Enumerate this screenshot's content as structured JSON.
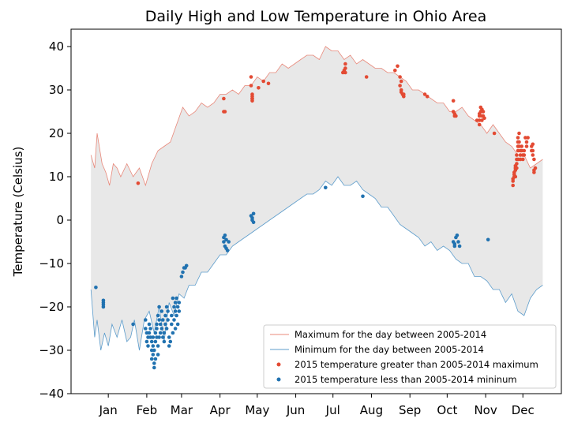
{
  "chart_data": {
    "type": "line",
    "title": "Daily High and Low Temperature in Ohio Area",
    "xlabel": "",
    "ylabel": "Temperature (Celsius)",
    "ylim": [
      -40,
      44
    ],
    "xlim": [
      -15,
      380
    ],
    "yticks": [
      -40,
      -30,
      -20,
      -10,
      0,
      10,
      20,
      30,
      40
    ],
    "months": [
      "Jan",
      "Feb",
      "Mar",
      "Apr",
      "May",
      "Jun",
      "Jul",
      "Aug",
      "Sep",
      "Oct",
      "Nov",
      "Dec"
    ],
    "month_days": [
      15,
      46,
      74,
      105,
      135,
      166,
      196,
      227,
      258,
      288,
      319,
      349
    ],
    "grid": false,
    "legend_position": "lower-right",
    "fill_color": "#e8e8e8",
    "series": [
      {
        "name": "Maximum for the day between 2005-2014",
        "kind": "line",
        "color": "#e8887a",
        "x": [
          1,
          4,
          6,
          10,
          13,
          16,
          19,
          22,
          25,
          30,
          35,
          40,
          45,
          50,
          55,
          60,
          65,
          70,
          75,
          80,
          85,
          90,
          95,
          100,
          105,
          110,
          115,
          120,
          125,
          130,
          135,
          140,
          145,
          150,
          155,
          160,
          165,
          170,
          175,
          180,
          185,
          190,
          195,
          200,
          205,
          210,
          215,
          220,
          225,
          230,
          235,
          240,
          245,
          250,
          255,
          260,
          265,
          270,
          275,
          280,
          285,
          290,
          295,
          300,
          305,
          310,
          315,
          320,
          325,
          330,
          335,
          340,
          345,
          350,
          355,
          360,
          365
        ],
        "y": [
          15,
          12,
          20,
          13,
          11,
          8,
          13,
          12,
          10,
          13,
          10,
          12,
          8,
          13,
          16,
          17,
          18,
          22,
          26,
          24,
          25,
          27,
          26,
          27,
          29,
          29,
          30,
          29,
          31,
          31,
          33,
          32,
          34,
          34,
          36,
          35,
          36,
          37,
          38,
          38,
          37,
          40,
          39,
          39,
          37,
          38,
          36,
          37,
          36,
          35,
          35,
          34,
          34,
          33,
          32,
          30,
          30,
          29,
          28,
          27,
          27,
          25,
          25,
          26,
          24,
          23,
          22,
          20,
          22,
          20,
          18,
          17,
          15,
          15,
          12,
          13,
          14
        ]
      },
      {
        "name": "Minimum for the day between 2005-2014",
        "kind": "line",
        "color": "#5c9ccb",
        "x": [
          1,
          4,
          6,
          9,
          12,
          15,
          18,
          22,
          26,
          30,
          33,
          36,
          40,
          44,
          48,
          52,
          56,
          60,
          64,
          68,
          72,
          76,
          80,
          85,
          90,
          95,
          100,
          105,
          110,
          115,
          120,
          125,
          130,
          135,
          140,
          145,
          150,
          155,
          160,
          165,
          170,
          175,
          180,
          185,
          190,
          195,
          200,
          205,
          210,
          215,
          220,
          225,
          230,
          235,
          240,
          245,
          250,
          255,
          260,
          265,
          270,
          275,
          280,
          285,
          290,
          295,
          300,
          305,
          310,
          315,
          320,
          325,
          330,
          335,
          340,
          345,
          350,
          355,
          360,
          365
        ],
        "y": [
          -16,
          -27,
          -23,
          -30,
          -26,
          -29,
          -24,
          -27,
          -23,
          -28,
          -27,
          -23,
          -30,
          -23,
          -21,
          -26,
          -20,
          -28,
          -19,
          -22,
          -17,
          -18,
          -15,
          -15,
          -12,
          -12,
          -10,
          -8,
          -8,
          -6,
          -5,
          -4,
          -3,
          -2,
          -1,
          0,
          1,
          2,
          3,
          4,
          5,
          6,
          6,
          7,
          9,
          8,
          10,
          8,
          8,
          9,
          7,
          6,
          5,
          3,
          3,
          1,
          -1,
          -2,
          -3,
          -4,
          -6,
          -5,
          -7,
          -6,
          -7,
          -9,
          -10,
          -10,
          -13,
          -13,
          -14,
          -16,
          -16,
          -19,
          -17,
          -21,
          -22,
          -18,
          -16,
          -15
        ]
      },
      {
        "name": "2015 temperature greater than 2005-2014 maximum",
        "kind": "scatter",
        "color": "#e34a33",
        "x": [
          39,
          108,
          108,
          109,
          130,
          130,
          131,
          131,
          131,
          131,
          131,
          136,
          140,
          144,
          204,
          205,
          206,
          206,
          206,
          223,
          246,
          248,
          250,
          250,
          251,
          251,
          251,
          252,
          253,
          253,
          270,
          272,
          293,
          293,
          294,
          294,
          295,
          312,
          314,
          314,
          314,
          314,
          315,
          315,
          316,
          316,
          316,
          317,
          317,
          318,
          326,
          341,
          341,
          341,
          342,
          342,
          342,
          343,
          343,
          343,
          343,
          344,
          344,
          344,
          344,
          345,
          345,
          345,
          345,
          345,
          346,
          346,
          346,
          347,
          347,
          347,
          348,
          348,
          349,
          349,
          350,
          350,
          351,
          352,
          352,
          353,
          356,
          356,
          357,
          357,
          357,
          358,
          358,
          358,
          359
        ],
        "y": [
          8.5,
          28,
          25,
          25,
          33,
          31,
          28,
          28.5,
          29,
          27.5,
          28,
          30.5,
          32,
          31.5,
          34,
          34.5,
          34,
          35,
          36,
          33,
          34.5,
          35.5,
          33,
          31,
          32,
          29.5,
          30,
          29,
          28.5,
          29,
          29,
          28.5,
          27.5,
          25,
          24,
          24.5,
          24,
          23,
          24,
          24.5,
          23,
          22,
          26,
          25,
          24,
          23,
          25.5,
          25,
          24,
          23.5,
          20,
          8,
          9,
          9.5,
          10,
          10.5,
          11,
          11.5,
          12,
          10,
          12.5,
          12,
          13,
          14,
          15,
          14,
          16,
          17,
          18,
          19,
          20,
          18,
          17,
          16,
          15,
          14,
          17,
          16,
          15,
          14,
          15,
          16,
          19,
          17,
          18,
          19,
          17,
          16,
          17.5,
          16,
          15,
          14,
          11,
          11.5,
          12
        ]
      },
      {
        "name": "2015 temperature less than 2005-2014 mininum",
        "kind": "scatter",
        "color": "#2172b0",
        "x": [
          5,
          11,
          11,
          11,
          11,
          35,
          45,
          45,
          46,
          46,
          47,
          47,
          48,
          48,
          49,
          49,
          50,
          50,
          50,
          51,
          51,
          51,
          52,
          52,
          52,
          53,
          53,
          53,
          54,
          54,
          54,
          55,
          55,
          55,
          56,
          56,
          56,
          57,
          57,
          58,
          58,
          59,
          59,
          60,
          60,
          61,
          61,
          62,
          62,
          63,
          63,
          64,
          64,
          65,
          66,
          66,
          67,
          67,
          68,
          68,
          69,
          69,
          69,
          70,
          70,
          71,
          71,
          72,
          72,
          74,
          75,
          76,
          77,
          78,
          108,
          108,
          109,
          109,
          110,
          110,
          111,
          112,
          130,
          131,
          131,
          132,
          132,
          190,
          220,
          293,
          294,
          294,
          295,
          296,
          297,
          298,
          321
        ],
        "y": [
          -15.5,
          -19,
          -19.5,
          -20,
          -18.5,
          -24,
          -23,
          -25,
          -26,
          -28,
          -27,
          -29,
          -24,
          -26,
          -27,
          -25,
          -28,
          -30,
          -32,
          -31,
          -27,
          -29,
          -33,
          -34,
          -30,
          -32,
          -28,
          -26,
          -24,
          -27,
          -25,
          -22,
          -29,
          -31,
          -27,
          -20,
          -23,
          -26,
          -24,
          -21,
          -25,
          -27,
          -23,
          -26,
          -28,
          -22,
          -24,
          -25,
          -20,
          -21,
          -23,
          -29,
          -27,
          -28,
          -24,
          -22,
          -26,
          -18,
          -20,
          -23,
          -25,
          -19,
          -21,
          -18,
          -22,
          -24,
          -20,
          -19,
          -21,
          -13,
          -12,
          -11,
          -11,
          -10.5,
          -4,
          -5,
          -6,
          -3.5,
          -4.5,
          -6.5,
          -7,
          -5,
          1,
          0,
          0.5,
          -0.5,
          1.5,
          7.5,
          5.5,
          -5,
          -5.5,
          -6,
          -4,
          -3.5,
          -5,
          -6,
          -4.5
        ]
      }
    ]
  }
}
